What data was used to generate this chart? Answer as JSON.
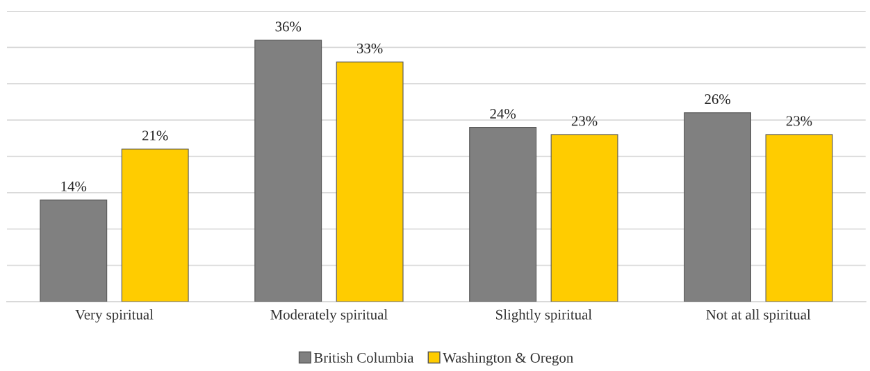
{
  "chart_data": {
    "type": "bar",
    "categories": [
      "Very spiritual",
      "Moderately spiritual",
      "Slightly spiritual",
      "Not at all spiritual"
    ],
    "series": [
      {
        "name": "British Columbia",
        "color": "#808080",
        "values": [
          14,
          36,
          24,
          26
        ],
        "value_labels": [
          "14%",
          "36%",
          "24%",
          "26%"
        ]
      },
      {
        "name": "Washington & Oregon",
        "color": "#ffcc00",
        "values": [
          21,
          33,
          23,
          23
        ],
        "value_labels": [
          "21%",
          "33%",
          "23%",
          "23%"
        ]
      }
    ],
    "ylim": [
      0,
      40
    ],
    "yticks": [
      0,
      5,
      10,
      15,
      20,
      25,
      30,
      35,
      40
    ],
    "tick_labels": "x",
    "grid": "y",
    "legend": "bottom"
  }
}
